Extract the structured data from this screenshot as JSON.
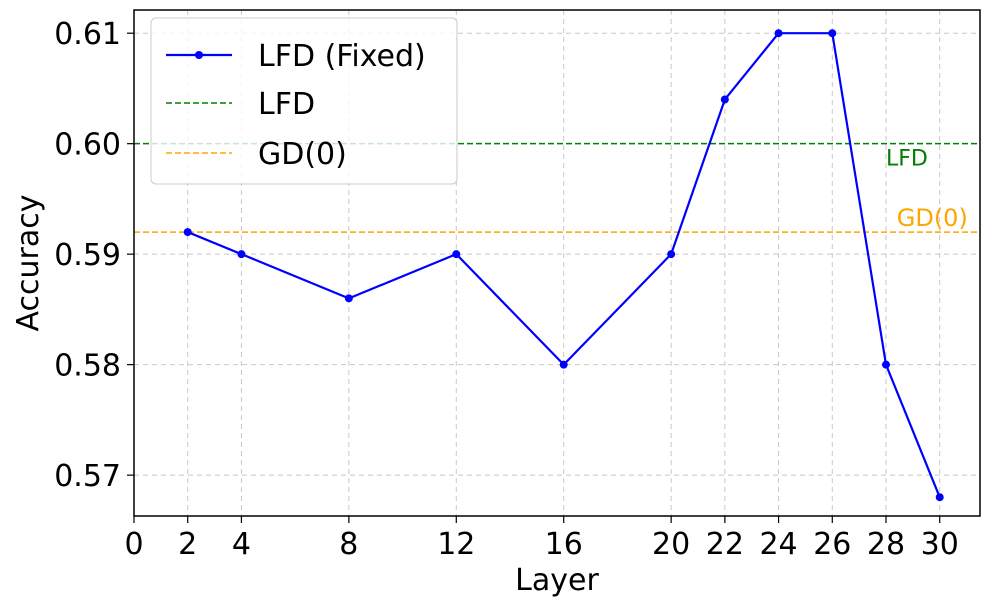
{
  "chart_data": {
    "type": "line",
    "title": "",
    "xlabel": "Layer",
    "ylabel": "Accuracy",
    "xlim": [
      0,
      31.5
    ],
    "ylim": [
      0.5663,
      0.6121
    ],
    "x_ticks": [
      0,
      2,
      4,
      8,
      12,
      16,
      20,
      22,
      24,
      26,
      28,
      30
    ],
    "x_tick_labels": [
      "0",
      "2",
      "4",
      "8",
      "12",
      "16",
      "20",
      "22",
      "24",
      "26",
      "28",
      "30"
    ],
    "y_ticks": [
      0.57,
      0.58,
      0.59,
      0.6,
      0.61
    ],
    "y_tick_labels": [
      "0.57",
      "0.58",
      "0.59",
      "0.60",
      "0.61"
    ],
    "grid": true,
    "legend_position": "top-left",
    "series": [
      {
        "name": "LFD (Fixed)",
        "kind": "line-with-markers",
        "color": "#0000ff",
        "x": [
          2,
          4,
          8,
          12,
          16,
          20,
          22,
          24,
          26,
          28,
          30
        ],
        "y": [
          0.592,
          0.59,
          0.586,
          0.59,
          0.58,
          0.59,
          0.604,
          0.61,
          0.61,
          0.58,
          0.568
        ]
      },
      {
        "name": "LFD",
        "kind": "hline-dashed",
        "color": "#008000",
        "y": 0.6,
        "annotation": "LFD"
      },
      {
        "name": "GD(0)",
        "kind": "hline-dashed",
        "color": "#ffa500",
        "y": 0.592,
        "annotation": "GD(0)"
      }
    ]
  }
}
